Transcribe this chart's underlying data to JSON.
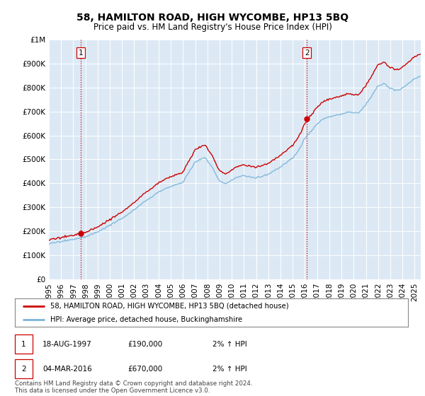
{
  "title": "58, HAMILTON ROAD, HIGH WYCOMBE, HP13 5BQ",
  "subtitle": "Price paid vs. HM Land Registry's House Price Index (HPI)",
  "ylim": [
    0,
    1000000
  ],
  "yticks": [
    0,
    100000,
    200000,
    300000,
    400000,
    500000,
    600000,
    700000,
    800000,
    900000,
    1000000
  ],
  "ytick_labels": [
    "£0",
    "£100K",
    "£200K",
    "£300K",
    "£400K",
    "£500K",
    "£600K",
    "£700K",
    "£800K",
    "£900K",
    "£1M"
  ],
  "bg_color": "#dce9f5",
  "line_color_hpi": "#7ab4d8",
  "line_color_price": "#cc0000",
  "marker_color": "#cc0000",
  "sale1_date_x": 1997.63,
  "sale1_price": 190000,
  "sale2_date_x": 2016.17,
  "sale2_price": 670000,
  "vline_color": "#cc0000",
  "legend_line1": "58, HAMILTON ROAD, HIGH WYCOMBE, HP13 5BQ (detached house)",
  "legend_line2": "HPI: Average price, detached house, Buckinghamshire",
  "table_row1": [
    "1",
    "18-AUG-1997",
    "£190,000",
    "2% ↑ HPI"
  ],
  "table_row2": [
    "2",
    "04-MAR-2016",
    "£670,000",
    "2% ↑ HPI"
  ],
  "footer": "Contains HM Land Registry data © Crown copyright and database right 2024.\nThis data is licensed under the Open Government Licence v3.0.",
  "xlim_start": 1995.0,
  "xlim_end": 2025.5,
  "xticks": [
    1995,
    1996,
    1997,
    1998,
    1999,
    2000,
    2001,
    2002,
    2003,
    2004,
    2005,
    2006,
    2007,
    2008,
    2009,
    2010,
    2011,
    2012,
    2013,
    2014,
    2015,
    2016,
    2017,
    2018,
    2019,
    2020,
    2021,
    2022,
    2023,
    2024,
    2025
  ]
}
